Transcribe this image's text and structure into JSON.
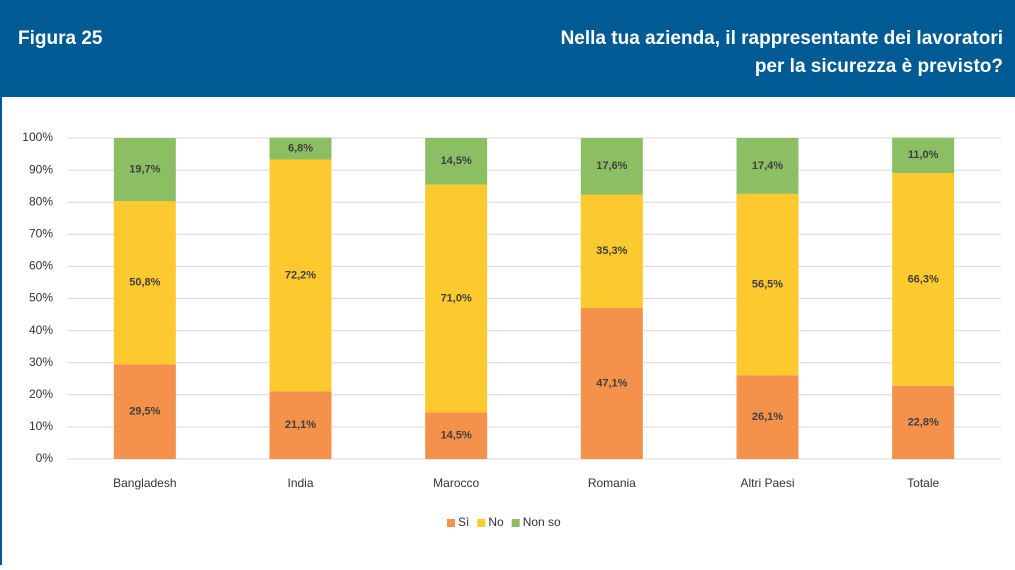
{
  "header": {
    "label": "Figura 25",
    "title": [
      "Nella tua azienda, il rappresentante dei lavoratori",
      "per la sicurezza è previsto?"
    ]
  },
  "chart_data": {
    "type": "stacked-bar",
    "categories": [
      "Bangladesh",
      "India",
      "Marocco",
      "Romania",
      "Altri Paesi",
      "Totale"
    ],
    "series": [
      {
        "name": "Sì",
        "color": "#f4914a",
        "values": [
          29.5,
          21.1,
          14.5,
          47.1,
          26.1,
          22.8
        ],
        "value_labels": [
          "29,5%",
          "21,1%",
          "14,5%",
          "47,1%",
          "26,1%",
          "22,8%"
        ]
      },
      {
        "name": "No",
        "color": "#fcca2e",
        "values": [
          50.8,
          72.2,
          71.0,
          35.3,
          56.5,
          66.3
        ],
        "value_labels": [
          "50,8%",
          "72,2%",
          "71,0%",
          "35,3%",
          "56,5%",
          "66,3%"
        ]
      },
      {
        "name": "Non so",
        "color": "#8cbf64",
        "values": [
          19.7,
          6.8,
          14.5,
          17.6,
          17.4,
          11.0
        ],
        "value_labels": [
          "19,7%",
          "6,8%",
          "14,5%",
          "17,6%",
          "17,4%",
          "11,0%"
        ]
      }
    ],
    "ylim": [
      0,
      100
    ],
    "yticks": [
      {
        "value": 0,
        "label": "0%"
      },
      {
        "value": 10,
        "label": "10%"
      },
      {
        "value": 20,
        "label": "20%"
      },
      {
        "value": 30,
        "label": "30%"
      },
      {
        "value": 40,
        "label": "40%"
      },
      {
        "value": 50,
        "label": "50%"
      },
      {
        "value": 60,
        "label": "60%"
      },
      {
        "value": 70,
        "label": "70%"
      },
      {
        "value": 80,
        "label": "80%"
      },
      {
        "value": 90,
        "label": "90%"
      },
      {
        "value": 100,
        "label": "100%"
      }
    ],
    "grid": true,
    "legend": "bottom"
  }
}
